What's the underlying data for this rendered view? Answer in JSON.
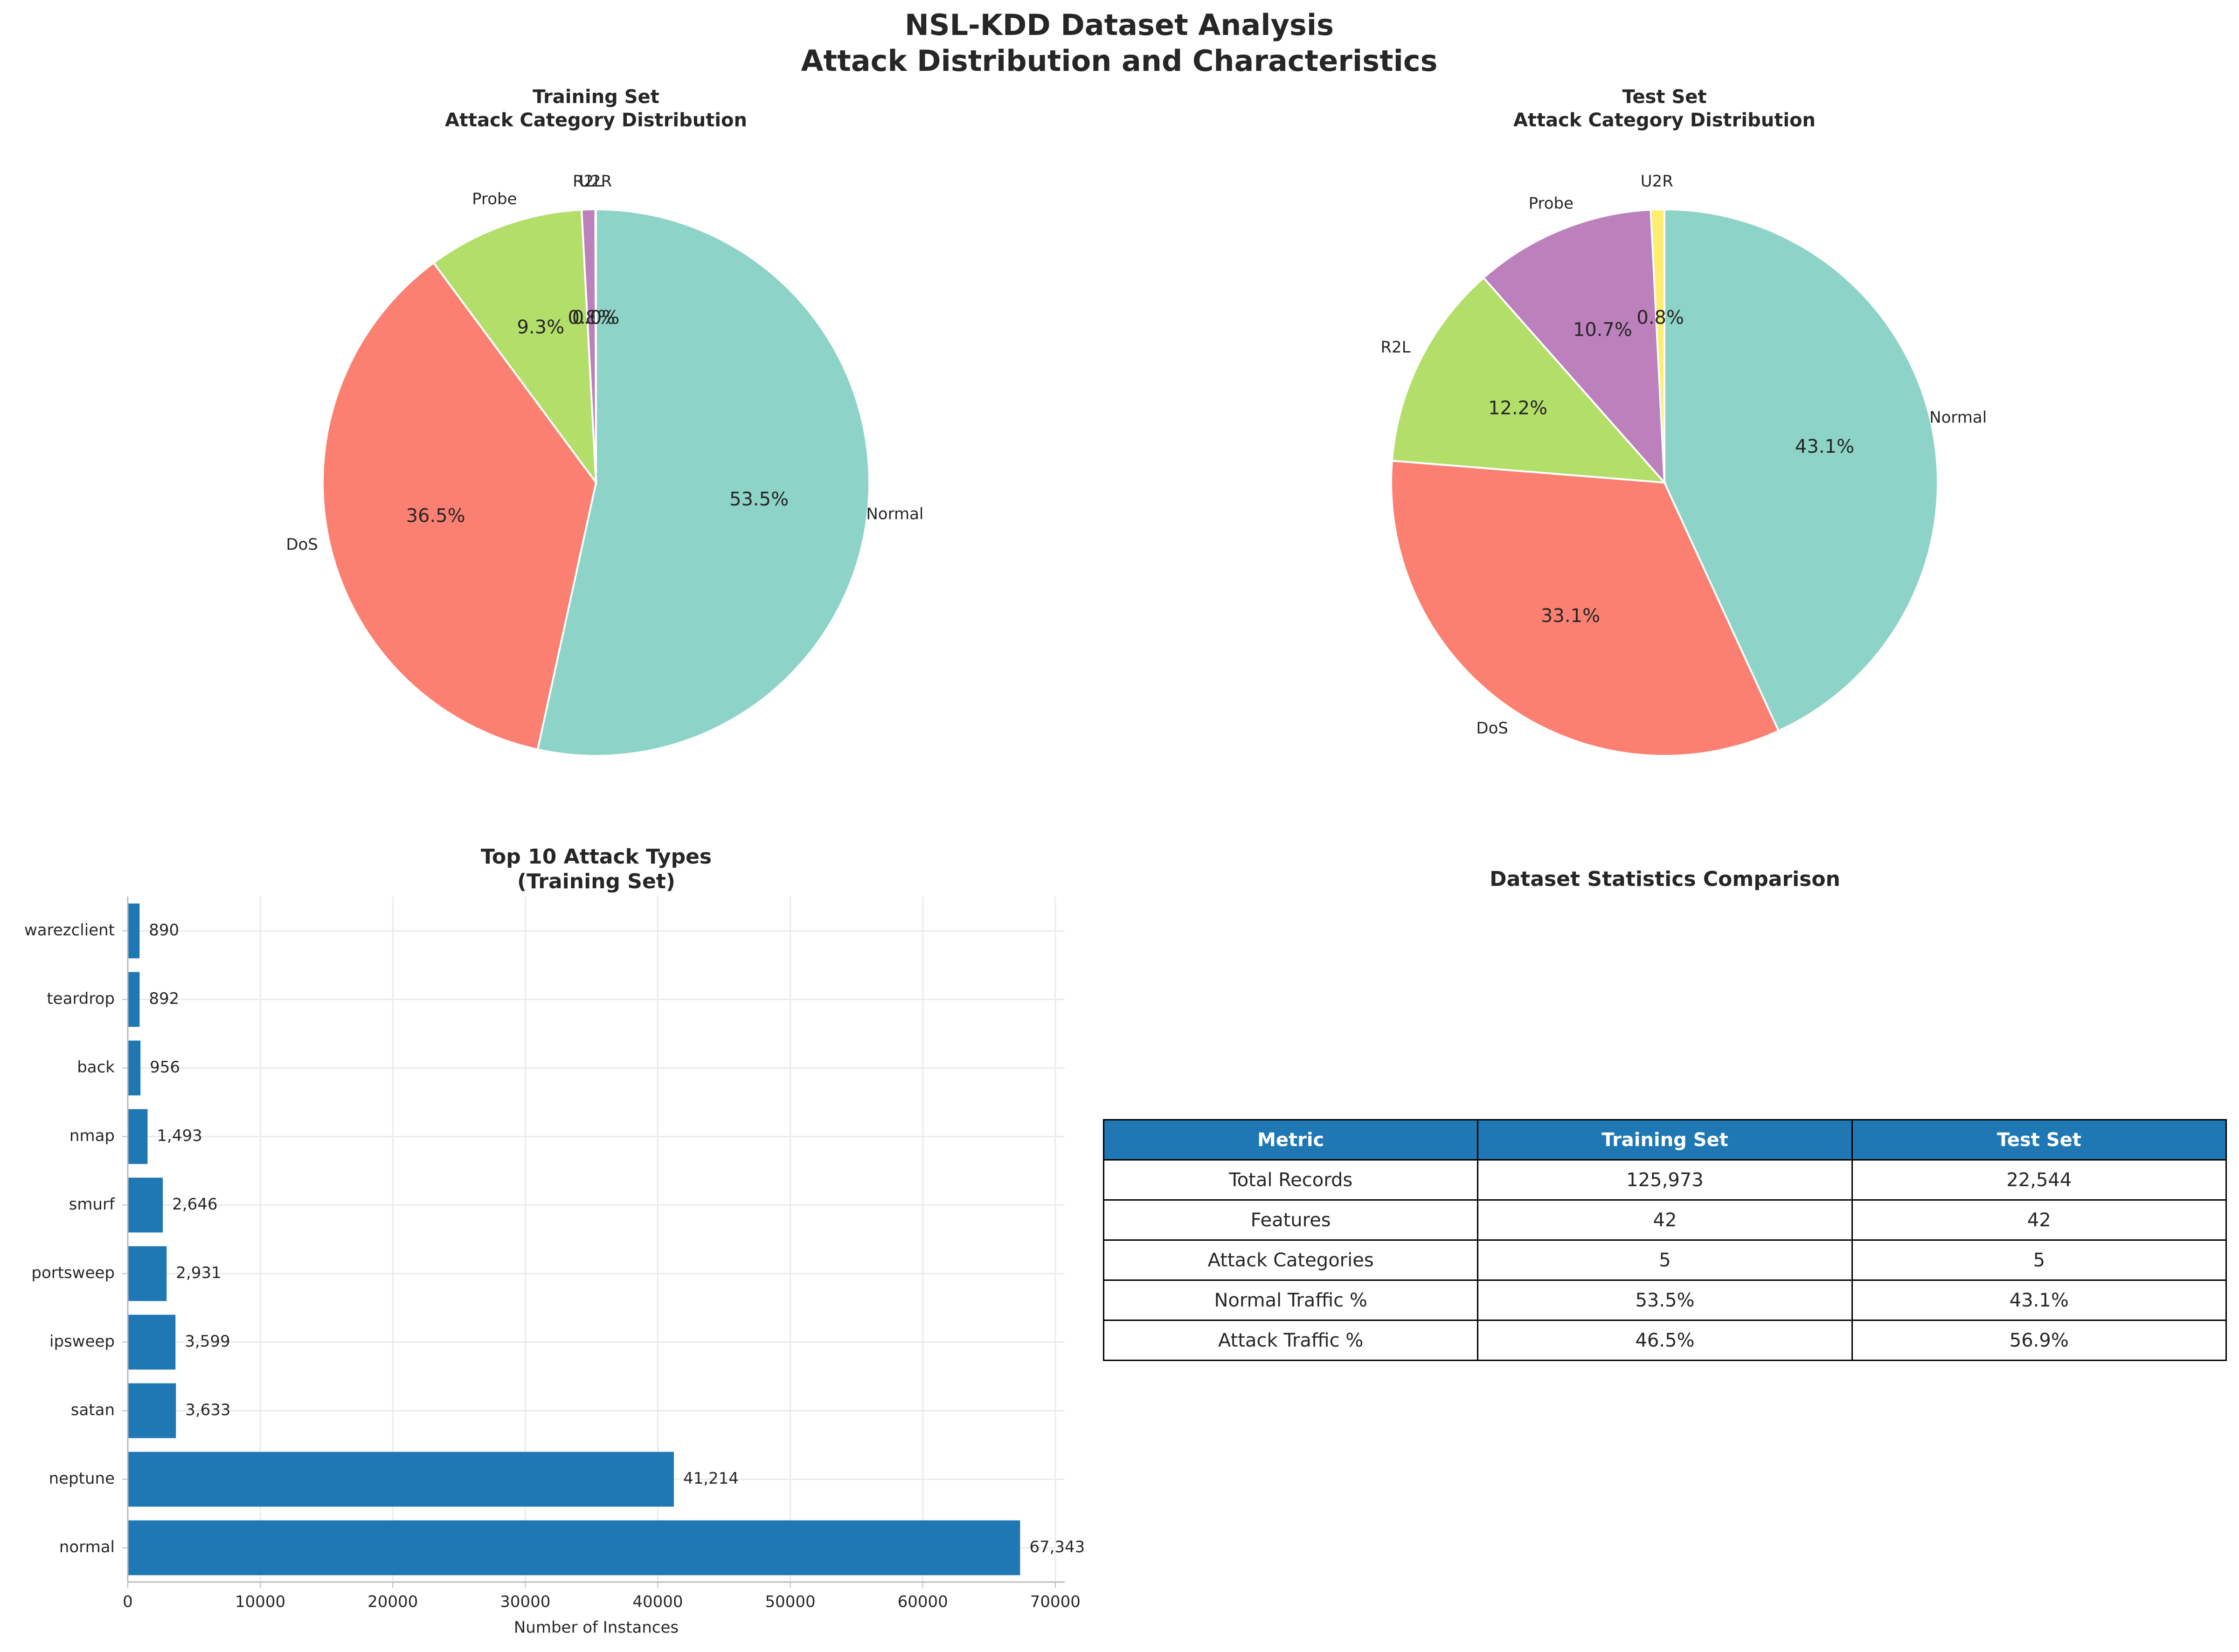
{
  "suptitle": [
    "NSL-KDD Dataset Analysis",
    "Attack Distribution and Characteristics"
  ],
  "colors": {
    "accent": "#1f77b4",
    "text": "#262626",
    "grid": "#ebebeb"
  },
  "chart_data": [
    {
      "type": "pie",
      "title": [
        "Training Set",
        "Attack Category Distribution"
      ],
      "labels": [
        "Normal",
        "DoS",
        "Probe",
        "R2L",
        "U2R"
      ],
      "values": [
        53.5,
        36.5,
        9.3,
        0.8,
        0.04
      ],
      "pct_labels": [
        "53.5%",
        "36.5%",
        "9.3%",
        "0.8%",
        "0.0%"
      ],
      "colors": [
        "#8dd3c7",
        "#fb8072",
        "#b3de69",
        "#bc80bd",
        "#ffed6f"
      ],
      "start_angle": 90,
      "direction": "clockwise"
    },
    {
      "type": "pie",
      "title": [
        "Test Set",
        "Attack Category Distribution"
      ],
      "labels": [
        "Normal",
        "DoS",
        "R2L",
        "Probe",
        "U2R"
      ],
      "values": [
        43.1,
        33.1,
        12.2,
        10.7,
        0.8
      ],
      "pct_labels": [
        "43.1%",
        "33.1%",
        "12.2%",
        "10.7%",
        "0.8%"
      ],
      "colors": [
        "#8dd3c7",
        "#fb8072",
        "#b3de69",
        "#bc80bd",
        "#ffed6f"
      ],
      "start_angle": 90,
      "direction": "clockwise"
    },
    {
      "type": "bar",
      "orientation": "horizontal",
      "title": [
        "Top 10 Attack Types",
        "(Training Set)"
      ],
      "xlabel": "Number of Instances",
      "categories": [
        "normal",
        "neptune",
        "satan",
        "ipsweep",
        "portsweep",
        "smurf",
        "nmap",
        "back",
        "teardrop",
        "warezclient"
      ],
      "values": [
        67343,
        41214,
        3633,
        3599,
        2931,
        2646,
        1493,
        956,
        892,
        890
      ],
      "value_labels": [
        "67,343",
        "41,214",
        "3,633",
        "3,599",
        "2,931",
        "2,646",
        "1,493",
        "956",
        "892",
        "890"
      ],
      "xticks": [
        0,
        10000,
        20000,
        30000,
        40000,
        50000,
        60000,
        70000
      ],
      "xlim": [
        0,
        70710
      ],
      "grid": true,
      "color": "#1f77b4"
    },
    {
      "type": "table",
      "title": "Dataset Statistics Comparison",
      "columns": [
        "Metric",
        "Training Set",
        "Test Set"
      ],
      "rows": [
        [
          "Total Records",
          "125,973",
          "22,544"
        ],
        [
          "Features",
          "42",
          "42"
        ],
        [
          "Attack Categories",
          "5",
          "5"
        ],
        [
          "Normal Traffic %",
          "53.5%",
          "43.1%"
        ],
        [
          "Attack Traffic %",
          "46.5%",
          "56.9%"
        ]
      ]
    }
  ]
}
